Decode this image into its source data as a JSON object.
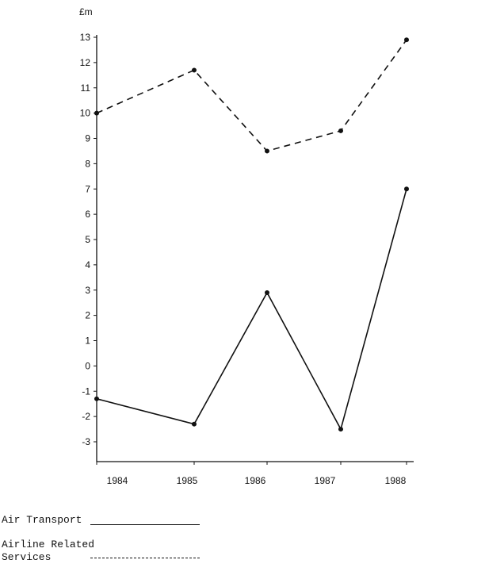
{
  "chart_data": {
    "type": "line",
    "ylabel": "£m",
    "categories": [
      "1984",
      "1985",
      "1986",
      "1987",
      "1988"
    ],
    "yticks": [
      -3,
      -2,
      -1,
      0,
      1,
      2,
      3,
      4,
      5,
      6,
      7,
      8,
      9,
      10,
      11,
      12,
      13
    ],
    "ylim": [
      -3.8,
      13
    ],
    "grid": false,
    "legend_position": "bottom-left",
    "series": [
      {
        "name": "Airline Related Services",
        "style": "dashed",
        "values": [
          10.0,
          11.7,
          8.5,
          9.3,
          12.9
        ]
      },
      {
        "name": "Air Transport",
        "style": "solid",
        "values": [
          -1.3,
          -2.3,
          2.9,
          -2.5,
          7.0
        ]
      }
    ]
  },
  "legend": {
    "air_transport": "Air Transport",
    "airline_related_line1": "Airline Related",
    "airline_related_line2": "Services"
  }
}
